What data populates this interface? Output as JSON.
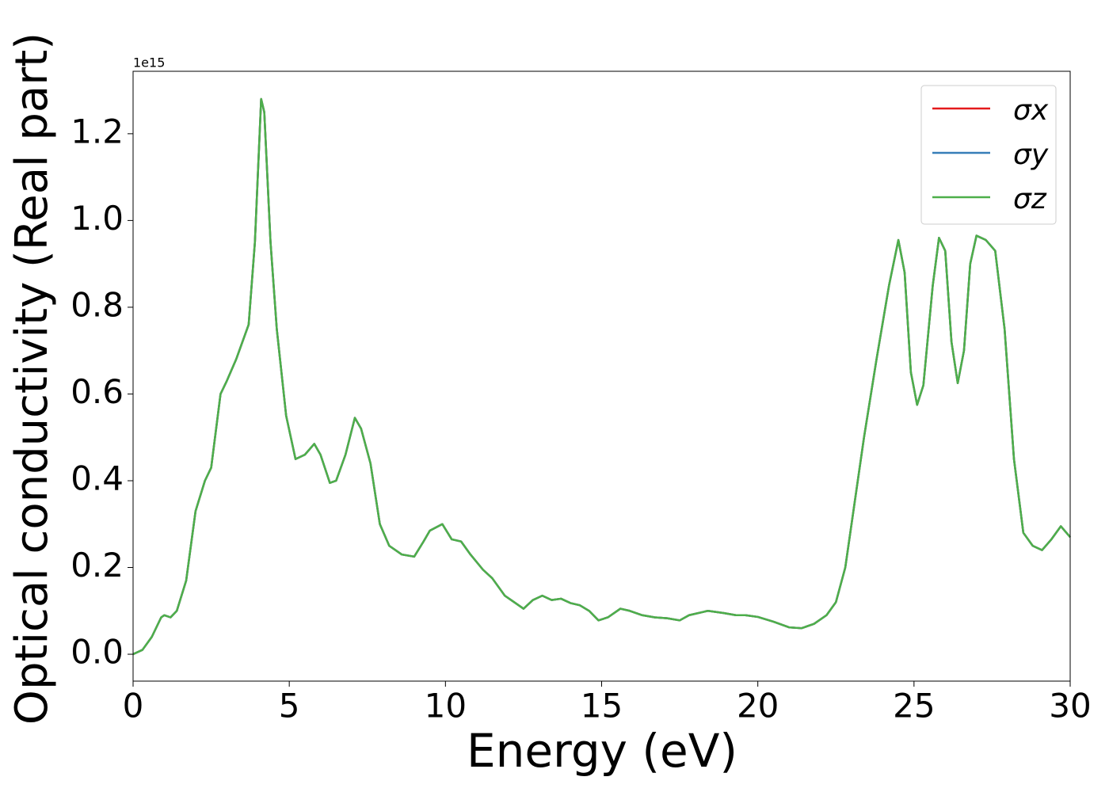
{
  "chart_data": {
    "type": "line",
    "xlabel": "Energy (eV)",
    "ylabel": "Optical conductivity (Real part)",
    "y_offset_label": "1e15",
    "x": [
      0,
      0.3,
      0.6,
      0.9,
      1.0,
      1.2,
      1.4,
      1.7,
      2.0,
      2.3,
      2.5,
      2.8,
      3.0,
      3.3,
      3.7,
      3.9,
      4.1,
      4.2,
      4.4,
      4.6,
      4.9,
      5.2,
      5.5,
      5.8,
      6.0,
      6.3,
      6.5,
      6.8,
      7.1,
      7.3,
      7.6,
      7.9,
      8.2,
      8.6,
      9.0,
      9.3,
      9.5,
      9.9,
      10.2,
      10.5,
      10.8,
      11.2,
      11.5,
      11.9,
      12.2,
      12.5,
      12.8,
      13.1,
      13.4,
      13.7,
      14.0,
      14.3,
      14.6,
      14.9,
      15.2,
      15.6,
      15.9,
      16.3,
      16.7,
      17.1,
      17.5,
      17.8,
      18.4,
      18.9,
      19.3,
      19.6,
      20.0,
      20.5,
      21.0,
      21.4,
      21.8,
      22.2,
      22.5,
      22.8,
      23.1,
      23.4,
      23.8,
      24.2,
      24.5,
      24.7,
      24.9,
      25.1,
      25.3,
      25.6,
      25.8,
      26.0,
      26.2,
      26.4,
      26.6,
      26.8,
      27.0,
      27.3,
      27.6,
      27.9,
      28.2,
      28.5,
      28.8,
      29.1,
      29.4,
      29.7,
      30.0
    ],
    "series": [
      {
        "name": "σx",
        "color": "#e41a1c",
        "values": [
          0.0,
          0.01,
          0.04,
          0.085,
          0.09,
          0.085,
          0.1,
          0.17,
          0.33,
          0.4,
          0.43,
          0.6,
          0.63,
          0.68,
          0.76,
          0.95,
          1.28,
          1.25,
          0.95,
          0.75,
          0.55,
          0.45,
          0.46,
          0.485,
          0.46,
          0.395,
          0.4,
          0.46,
          0.545,
          0.52,
          0.44,
          0.3,
          0.25,
          0.23,
          0.225,
          0.26,
          0.285,
          0.3,
          0.265,
          0.26,
          0.23,
          0.195,
          0.175,
          0.135,
          0.12,
          0.105,
          0.125,
          0.135,
          0.125,
          0.128,
          0.118,
          0.113,
          0.1,
          0.078,
          0.085,
          0.105,
          0.1,
          0.09,
          0.085,
          0.083,
          0.078,
          0.09,
          0.1,
          0.095,
          0.09,
          0.09,
          0.086,
          0.075,
          0.062,
          0.06,
          0.07,
          0.09,
          0.12,
          0.2,
          0.35,
          0.5,
          0.68,
          0.85,
          0.955,
          0.88,
          0.65,
          0.575,
          0.62,
          0.85,
          0.96,
          0.93,
          0.72,
          0.625,
          0.7,
          0.9,
          0.965,
          0.955,
          0.93,
          0.75,
          0.45,
          0.28,
          0.25,
          0.24,
          0.265,
          0.295,
          0.27
        ]
      },
      {
        "name": "σy",
        "color": "#377eb8",
        "values": [
          0.0,
          0.01,
          0.04,
          0.085,
          0.09,
          0.085,
          0.1,
          0.17,
          0.33,
          0.4,
          0.43,
          0.6,
          0.63,
          0.68,
          0.76,
          0.95,
          1.28,
          1.25,
          0.95,
          0.75,
          0.55,
          0.45,
          0.46,
          0.485,
          0.46,
          0.395,
          0.4,
          0.46,
          0.545,
          0.52,
          0.44,
          0.3,
          0.25,
          0.23,
          0.225,
          0.26,
          0.285,
          0.3,
          0.265,
          0.26,
          0.23,
          0.195,
          0.175,
          0.135,
          0.12,
          0.105,
          0.125,
          0.135,
          0.125,
          0.128,
          0.118,
          0.113,
          0.1,
          0.078,
          0.085,
          0.105,
          0.1,
          0.09,
          0.085,
          0.083,
          0.078,
          0.09,
          0.1,
          0.095,
          0.09,
          0.09,
          0.086,
          0.075,
          0.062,
          0.06,
          0.07,
          0.09,
          0.12,
          0.2,
          0.35,
          0.5,
          0.68,
          0.85,
          0.955,
          0.88,
          0.65,
          0.575,
          0.62,
          0.85,
          0.96,
          0.93,
          0.72,
          0.625,
          0.7,
          0.9,
          0.965,
          0.955,
          0.93,
          0.75,
          0.45,
          0.28,
          0.25,
          0.24,
          0.265,
          0.295,
          0.27
        ]
      },
      {
        "name": "σz",
        "color": "#4daf4a",
        "values": [
          0.0,
          0.01,
          0.04,
          0.085,
          0.09,
          0.085,
          0.1,
          0.17,
          0.33,
          0.4,
          0.43,
          0.6,
          0.63,
          0.68,
          0.76,
          0.95,
          1.28,
          1.25,
          0.95,
          0.75,
          0.55,
          0.45,
          0.46,
          0.485,
          0.46,
          0.395,
          0.4,
          0.46,
          0.545,
          0.52,
          0.44,
          0.3,
          0.25,
          0.23,
          0.225,
          0.26,
          0.285,
          0.3,
          0.265,
          0.26,
          0.23,
          0.195,
          0.175,
          0.135,
          0.12,
          0.105,
          0.125,
          0.135,
          0.125,
          0.128,
          0.118,
          0.113,
          0.1,
          0.078,
          0.085,
          0.105,
          0.1,
          0.09,
          0.085,
          0.083,
          0.078,
          0.09,
          0.1,
          0.095,
          0.09,
          0.09,
          0.086,
          0.075,
          0.062,
          0.06,
          0.07,
          0.09,
          0.12,
          0.2,
          0.35,
          0.5,
          0.68,
          0.85,
          0.955,
          0.88,
          0.65,
          0.575,
          0.62,
          0.85,
          0.96,
          0.93,
          0.72,
          0.625,
          0.7,
          0.9,
          0.965,
          0.955,
          0.93,
          0.75,
          0.45,
          0.28,
          0.25,
          0.24,
          0.265,
          0.295,
          0.27
        ]
      }
    ],
    "xlim": [
      0,
      30
    ],
    "xticks": [
      0,
      5,
      10,
      15,
      20,
      25,
      30
    ],
    "ylim": [
      -0.062,
      1.344
    ],
    "yticks": [
      {
        "value": 0,
        "label": "0.0"
      },
      {
        "value": 0.2,
        "label": "0.2"
      },
      {
        "value": 0.4,
        "label": "0.4"
      },
      {
        "value": 0.6,
        "label": "0.6"
      },
      {
        "value": 0.8,
        "label": "0.8"
      },
      {
        "value": 1.0,
        "label": "1.0"
      },
      {
        "value": 1.2,
        "label": "1.2"
      }
    ],
    "legend": "upper right",
    "grid": false
  }
}
